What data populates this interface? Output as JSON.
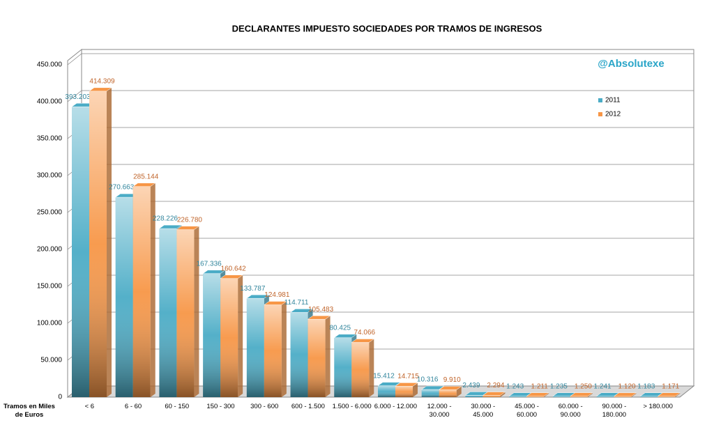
{
  "chart_data": {
    "type": "bar3d",
    "title": "DECLARANTES IMPUESTO SOCIEDADES POR TRAMOS DE INGRESOS",
    "watermark": "@Absolutexe",
    "x_label": "Tramos en Miles de Euros",
    "categories": [
      "< 6",
      "6 - 60",
      "60 - 150",
      "150 - 300",
      "300 - 600",
      "600 - 1.500",
      "1.500 - 6.000",
      "6.000 - 12.000",
      "12.000 - 30.000",
      "30.000 - 45.000",
      "45.000 - 60.000",
      "60.000 - 90.000",
      "90.000 - 180.000",
      "> 180.000"
    ],
    "series": [
      {
        "name": "2011",
        "color": "#4bacc6",
        "label_color": "#31859c",
        "values": [
          393203,
          270663,
          228226,
          167336,
          133787,
          114711,
          80425,
          15412,
          10316,
          2439,
          1243,
          1235,
          1241,
          1183
        ],
        "value_labels": [
          "393.203",
          "270.663",
          "228.226",
          "167.336",
          "133.787",
          "114.711",
          "80.425",
          "15.412",
          "10.316",
          "2.439",
          "1.243",
          "1.235",
          "1.241",
          "1.183"
        ]
      },
      {
        "name": "2012",
        "color": "#f79646",
        "label_color": "#c0642a",
        "values": [
          414309,
          285144,
          226780,
          160642,
          124981,
          105483,
          74066,
          14715,
          9910,
          2294,
          1211,
          1250,
          1120,
          1171
        ],
        "value_labels": [
          "414.309",
          "285.144",
          "226.780",
          "160.642",
          "124.981",
          "105.483",
          "74.066",
          "14.715",
          "9.910",
          "2.294",
          "1.211",
          "1.250",
          "1.120",
          "1.171"
        ]
      }
    ],
    "ylim": [
      0,
      450000
    ],
    "yticks": [
      0,
      {
        "value": 50000,
        "label": "50.000"
      },
      {
        "value": 100000,
        "label": "100.000"
      },
      {
        "value": 150000,
        "label": "150.000"
      },
      {
        "value": 200000,
        "label": "200.000"
      },
      {
        "value": 250000,
        "label": "250.000"
      },
      {
        "value": 300000,
        "label": "300.000"
      },
      {
        "value": 350000,
        "label": "350.000"
      },
      {
        "value": 400000,
        "label": "400.000"
      },
      {
        "value": 450000,
        "label": "450.000"
      }
    ],
    "grid": true,
    "legend": "top-right"
  }
}
